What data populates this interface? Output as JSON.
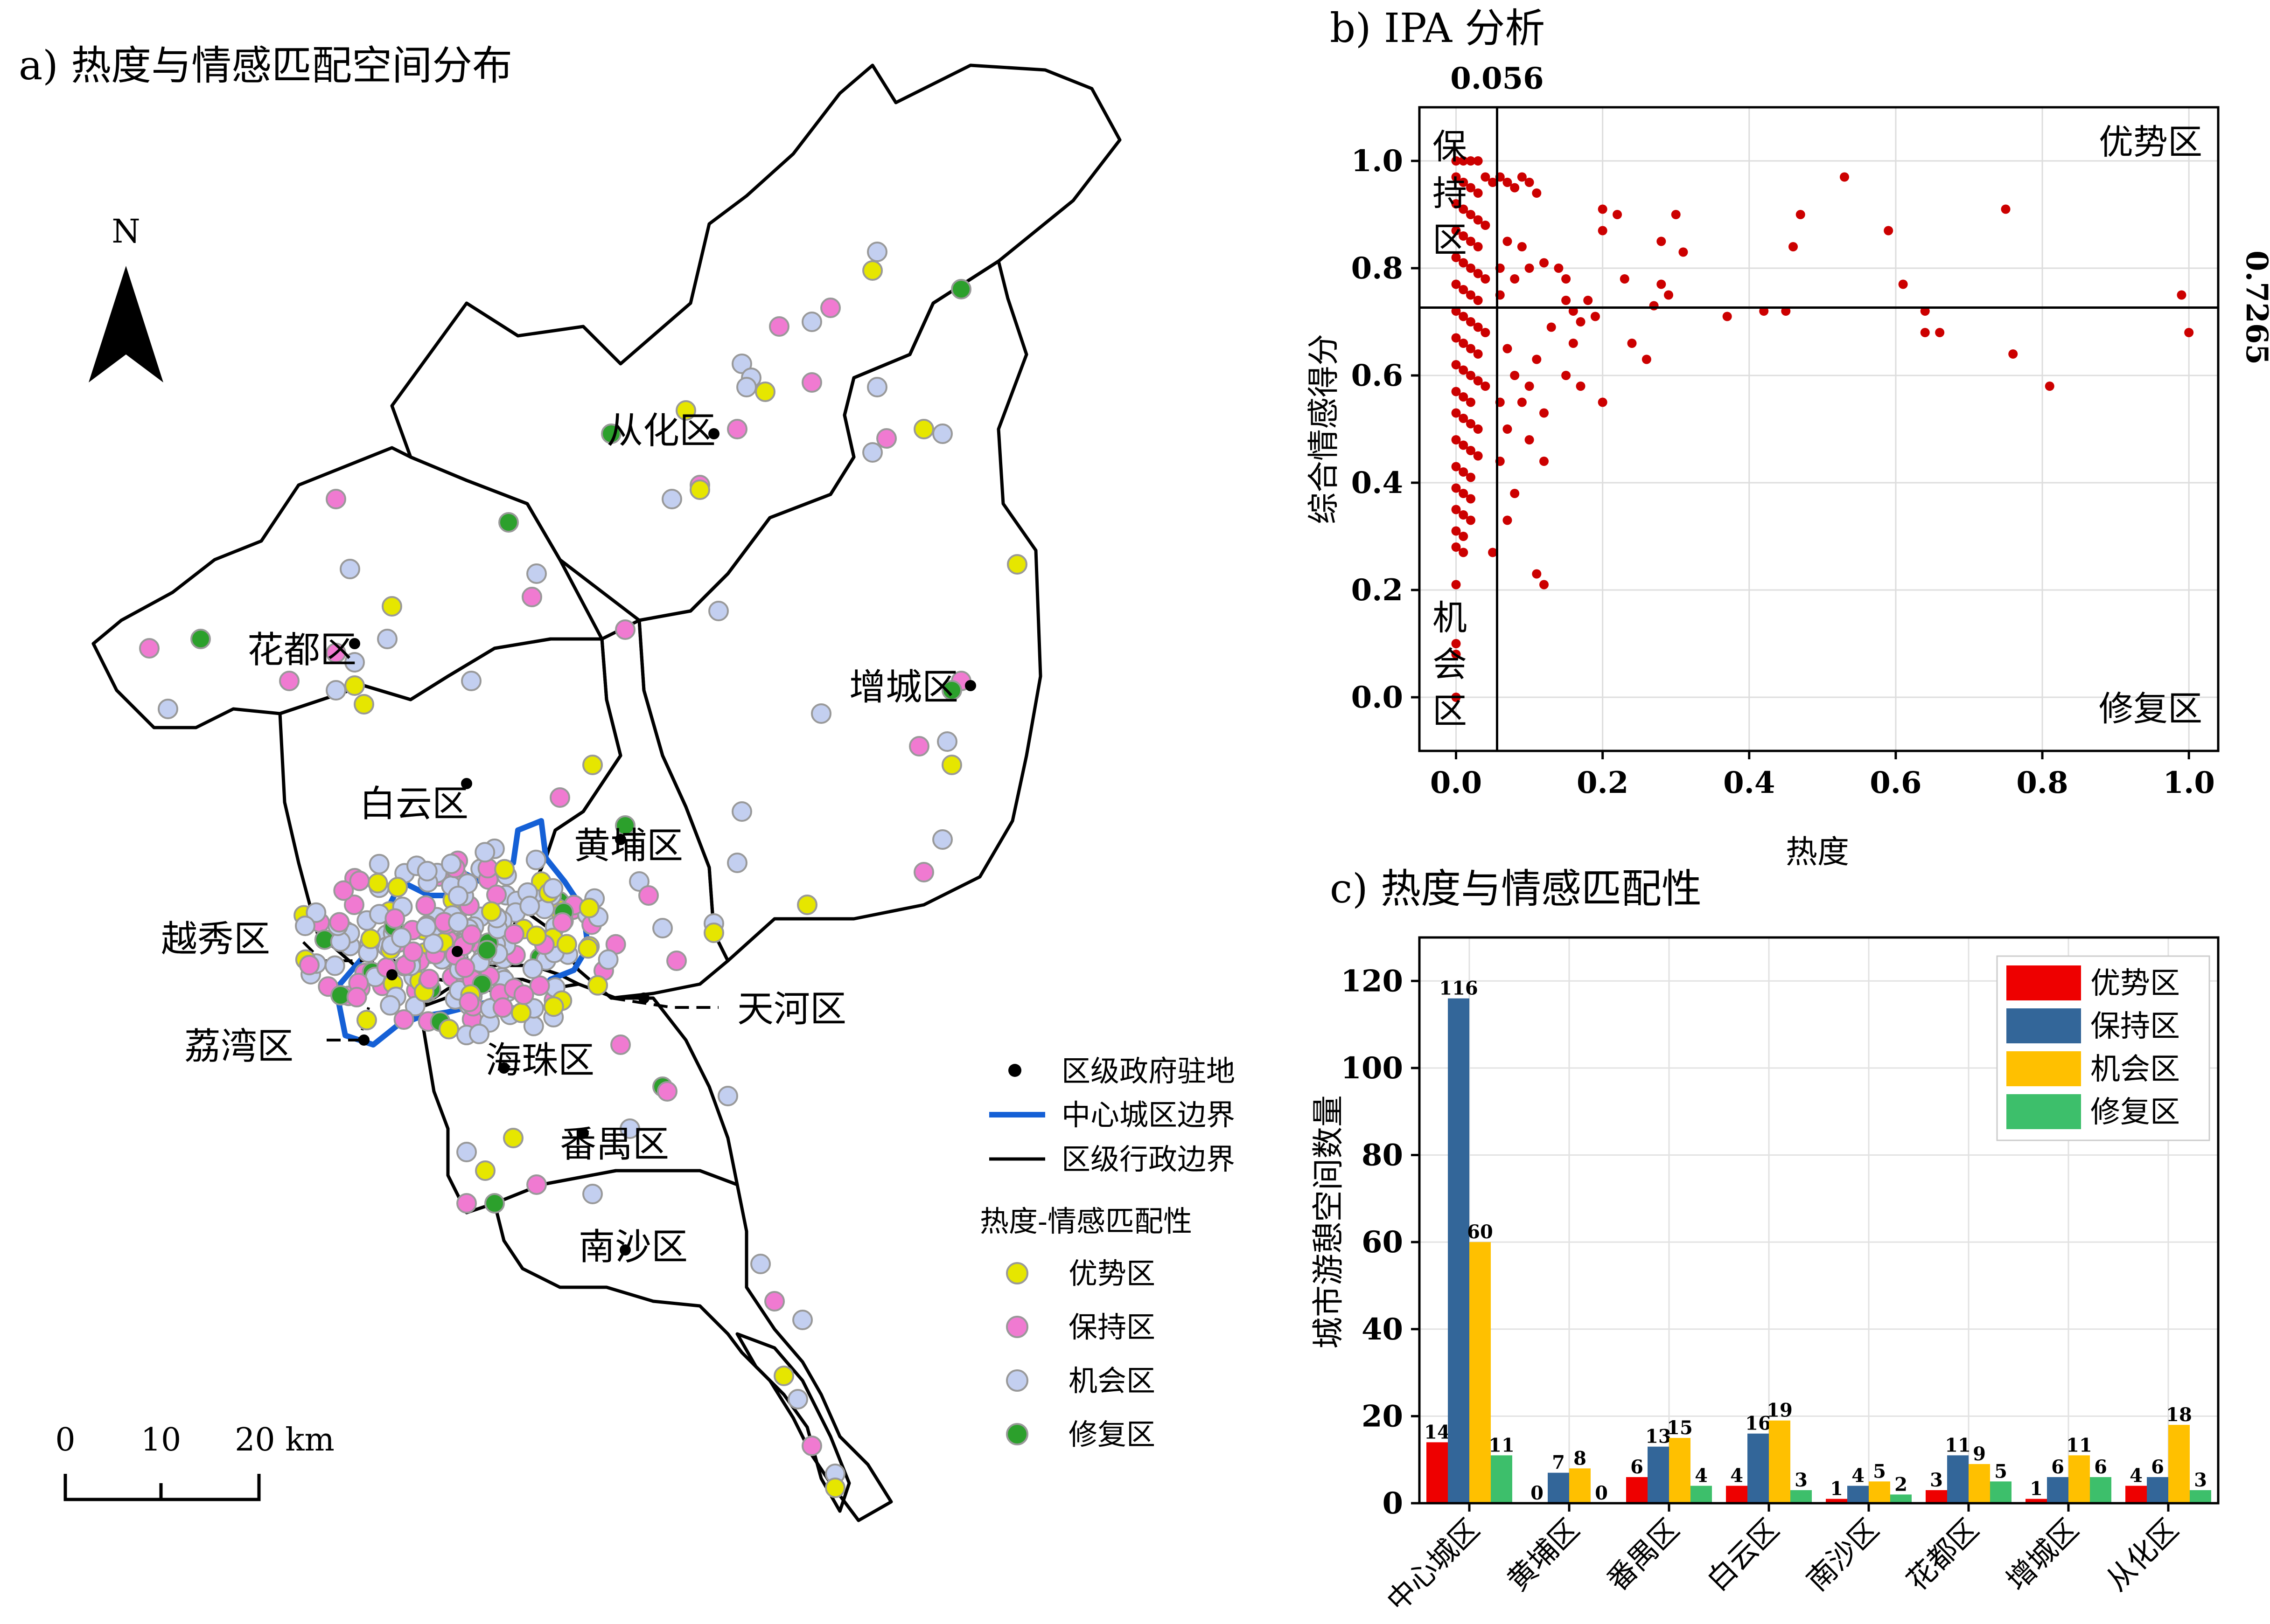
{
  "panel_a": {
    "title": "a)  热度与情感匹配空间分布",
    "north": "N",
    "scale": {
      "zero": "0",
      "ten": "10",
      "twenty": "20 km"
    },
    "districts": {
      "conghua": "从化区",
      "huadu": "花都区",
      "zengcheng": "增城区",
      "baiyun": "白云区",
      "huangpu": "黄埔区",
      "yuexiu": "越秀区",
      "tianhe": "天河区",
      "liwan": "荔湾区",
      "haizhu": "海珠区",
      "panyu": "番禺区",
      "nansha": "南沙区"
    },
    "legend": {
      "gov": "区级政府驻地",
      "center": "中心城区边界",
      "admin": "区级行政边界",
      "header": "热度-情感匹配性",
      "youshi": "优势区",
      "baochi": "保持区",
      "jihui": "机会区",
      "xiufu": "修复区"
    },
    "colors": {
      "youshi": "#e6e600",
      "baochi": "#f07ad1",
      "jihui": "#c3cff0",
      "xiufu": "#2ca02c",
      "center_line": "#1560d6"
    }
  },
  "panel_b": {
    "title": "b) IPA 分析",
    "vline_label": "0.056",
    "hline_label": "0.7265",
    "quad_tl": "保持区",
    "quad_tr": "优势区",
    "quad_bl": "机会区",
    "quad_br": "修复区"
  },
  "panel_c": {
    "title": "c)  热度与情感匹配性"
  },
  "chart_data": [
    {
      "type": "scatter",
      "title": "b) IPA 分析",
      "xlabel": "热度",
      "ylabel": "综合情感得分",
      "xlim": [
        -0.05,
        1.04
      ],
      "ylim": [
        -0.1,
        1.1
      ],
      "xticks": [
        "0.0",
        "0.2",
        "0.4",
        "0.6",
        "0.8",
        "1.0"
      ],
      "yticks": [
        "0.0",
        "0.2",
        "0.4",
        "0.6",
        "0.8",
        "1.0"
      ],
      "x_threshold": 0.056,
      "y_threshold": 0.7265,
      "color": "#cc0000",
      "points": [
        [
          0.0,
          1.0
        ],
        [
          0.01,
          1.0
        ],
        [
          0.02,
          1.0
        ],
        [
          0.03,
          1.0
        ],
        [
          0.0,
          0.97
        ],
        [
          0.01,
          0.96
        ],
        [
          0.02,
          0.95
        ],
        [
          0.03,
          0.94
        ],
        [
          0.04,
          0.97
        ],
        [
          0.05,
          0.96
        ],
        [
          0.0,
          0.92
        ],
        [
          0.01,
          0.91
        ],
        [
          0.02,
          0.9
        ],
        [
          0.03,
          0.89
        ],
        [
          0.04,
          0.88
        ],
        [
          0.0,
          0.87
        ],
        [
          0.01,
          0.86
        ],
        [
          0.02,
          0.85
        ],
        [
          0.03,
          0.84
        ],
        [
          0.0,
          0.82
        ],
        [
          0.01,
          0.81
        ],
        [
          0.02,
          0.8
        ],
        [
          0.03,
          0.79
        ],
        [
          0.04,
          0.78
        ],
        [
          0.0,
          0.77
        ],
        [
          0.01,
          0.76
        ],
        [
          0.02,
          0.75
        ],
        [
          0.03,
          0.74
        ],
        [
          0.0,
          0.72
        ],
        [
          0.01,
          0.71
        ],
        [
          0.02,
          0.7
        ],
        [
          0.03,
          0.69
        ],
        [
          0.04,
          0.68
        ],
        [
          0.0,
          0.67
        ],
        [
          0.01,
          0.66
        ],
        [
          0.02,
          0.65
        ],
        [
          0.03,
          0.64
        ],
        [
          0.0,
          0.62
        ],
        [
          0.01,
          0.61
        ],
        [
          0.02,
          0.6
        ],
        [
          0.03,
          0.59
        ],
        [
          0.04,
          0.58
        ],
        [
          0.0,
          0.57
        ],
        [
          0.01,
          0.56
        ],
        [
          0.02,
          0.55
        ],
        [
          0.0,
          0.53
        ],
        [
          0.01,
          0.52
        ],
        [
          0.02,
          0.51
        ],
        [
          0.03,
          0.5
        ],
        [
          0.0,
          0.48
        ],
        [
          0.01,
          0.47
        ],
        [
          0.02,
          0.46
        ],
        [
          0.03,
          0.45
        ],
        [
          0.0,
          0.43
        ],
        [
          0.01,
          0.42
        ],
        [
          0.02,
          0.41
        ],
        [
          0.0,
          0.39
        ],
        [
          0.01,
          0.38
        ],
        [
          0.02,
          0.37
        ],
        [
          0.0,
          0.35
        ],
        [
          0.01,
          0.34
        ],
        [
          0.02,
          0.33
        ],
        [
          0.0,
          0.31
        ],
        [
          0.01,
          0.3
        ],
        [
          0.0,
          0.28
        ],
        [
          0.01,
          0.27
        ],
        [
          0.0,
          0.21
        ],
        [
          0.0,
          0.1
        ],
        [
          0.0,
          0.08
        ],
        [
          0.0,
          0.0
        ],
        [
          0.05,
          0.27
        ],
        [
          0.06,
          0.97
        ],
        [
          0.07,
          0.96
        ],
        [
          0.08,
          0.95
        ],
        [
          0.09,
          0.97
        ],
        [
          0.1,
          0.96
        ],
        [
          0.11,
          0.94
        ],
        [
          0.07,
          0.85
        ],
        [
          0.09,
          0.84
        ],
        [
          0.06,
          0.8
        ],
        [
          0.08,
          0.78
        ],
        [
          0.1,
          0.8
        ],
        [
          0.12,
          0.81
        ],
        [
          0.06,
          0.75
        ],
        [
          0.07,
          0.65
        ],
        [
          0.08,
          0.6
        ],
        [
          0.1,
          0.58
        ],
        [
          0.06,
          0.55
        ],
        [
          0.09,
          0.55
        ],
        [
          0.11,
          0.63
        ],
        [
          0.07,
          0.5
        ],
        [
          0.1,
          0.48
        ],
        [
          0.12,
          0.44
        ],
        [
          0.06,
          0.44
        ],
        [
          0.08,
          0.38
        ],
        [
          0.07,
          0.33
        ],
        [
          0.12,
          0.53
        ],
        [
          0.11,
          0.23
        ],
        [
          0.12,
          0.21
        ],
        [
          0.13,
          0.69
        ],
        [
          0.14,
          0.8
        ],
        [
          0.15,
          0.78
        ],
        [
          0.15,
          0.74
        ],
        [
          0.16,
          0.72
        ],
        [
          0.17,
          0.7
        ],
        [
          0.16,
          0.66
        ],
        [
          0.17,
          0.58
        ],
        [
          0.15,
          0.6
        ],
        [
          0.18,
          0.74
        ],
        [
          0.19,
          0.71
        ],
        [
          0.2,
          0.87
        ],
        [
          0.2,
          0.91
        ],
        [
          0.22,
          0.9
        ],
        [
          0.23,
          0.78
        ],
        [
          0.24,
          0.66
        ],
        [
          0.2,
          0.55
        ],
        [
          0.26,
          0.63
        ],
        [
          0.27,
          0.73
        ],
        [
          0.28,
          0.77
        ],
        [
          0.29,
          0.75
        ],
        [
          0.3,
          0.9
        ],
        [
          0.31,
          0.83
        ],
        [
          0.28,
          0.85
        ],
        [
          0.37,
          0.71
        ],
        [
          0.42,
          0.72
        ],
        [
          0.45,
          0.72
        ],
        [
          0.46,
          0.84
        ],
        [
          0.47,
          0.9
        ],
        [
          0.53,
          0.97
        ],
        [
          0.59,
          0.87
        ],
        [
          0.61,
          0.77
        ],
        [
          0.64,
          0.72
        ],
        [
          0.64,
          0.68
        ],
        [
          0.66,
          0.68
        ],
        [
          0.75,
          0.91
        ],
        [
          0.76,
          0.64
        ],
        [
          0.81,
          0.58
        ],
        [
          0.99,
          0.75
        ],
        [
          1.0,
          0.68
        ]
      ]
    },
    {
      "type": "bar",
      "title": "c)  热度与情感匹配性",
      "xlabel": "",
      "ylabel": "城市游憩空间数量",
      "ylim": [
        0,
        130
      ],
      "yticks": [
        "0",
        "20",
        "40",
        "60",
        "80",
        "100",
        "120"
      ],
      "categories": [
        "中心城区",
        "黄埔区",
        "番禺区",
        "白云区",
        "南沙区",
        "花都区",
        "增城区",
        "从化区"
      ],
      "series": [
        {
          "name": "优势区",
          "color": "#ee0000",
          "values": [
            14,
            0,
            6,
            4,
            1,
            3,
            1,
            4
          ]
        },
        {
          "name": "保持区",
          "color": "#336699",
          "values": [
            116,
            7,
            13,
            16,
            4,
            11,
            6,
            6
          ]
        },
        {
          "name": "机会区",
          "color": "#ffc000",
          "values": [
            60,
            8,
            15,
            19,
            5,
            9,
            11,
            18
          ]
        },
        {
          "name": "修复区",
          "color": "#3dbf6b",
          "values": [
            11,
            0,
            4,
            3,
            2,
            5,
            6,
            3
          ]
        }
      ],
      "legend_position": "top-right"
    }
  ]
}
